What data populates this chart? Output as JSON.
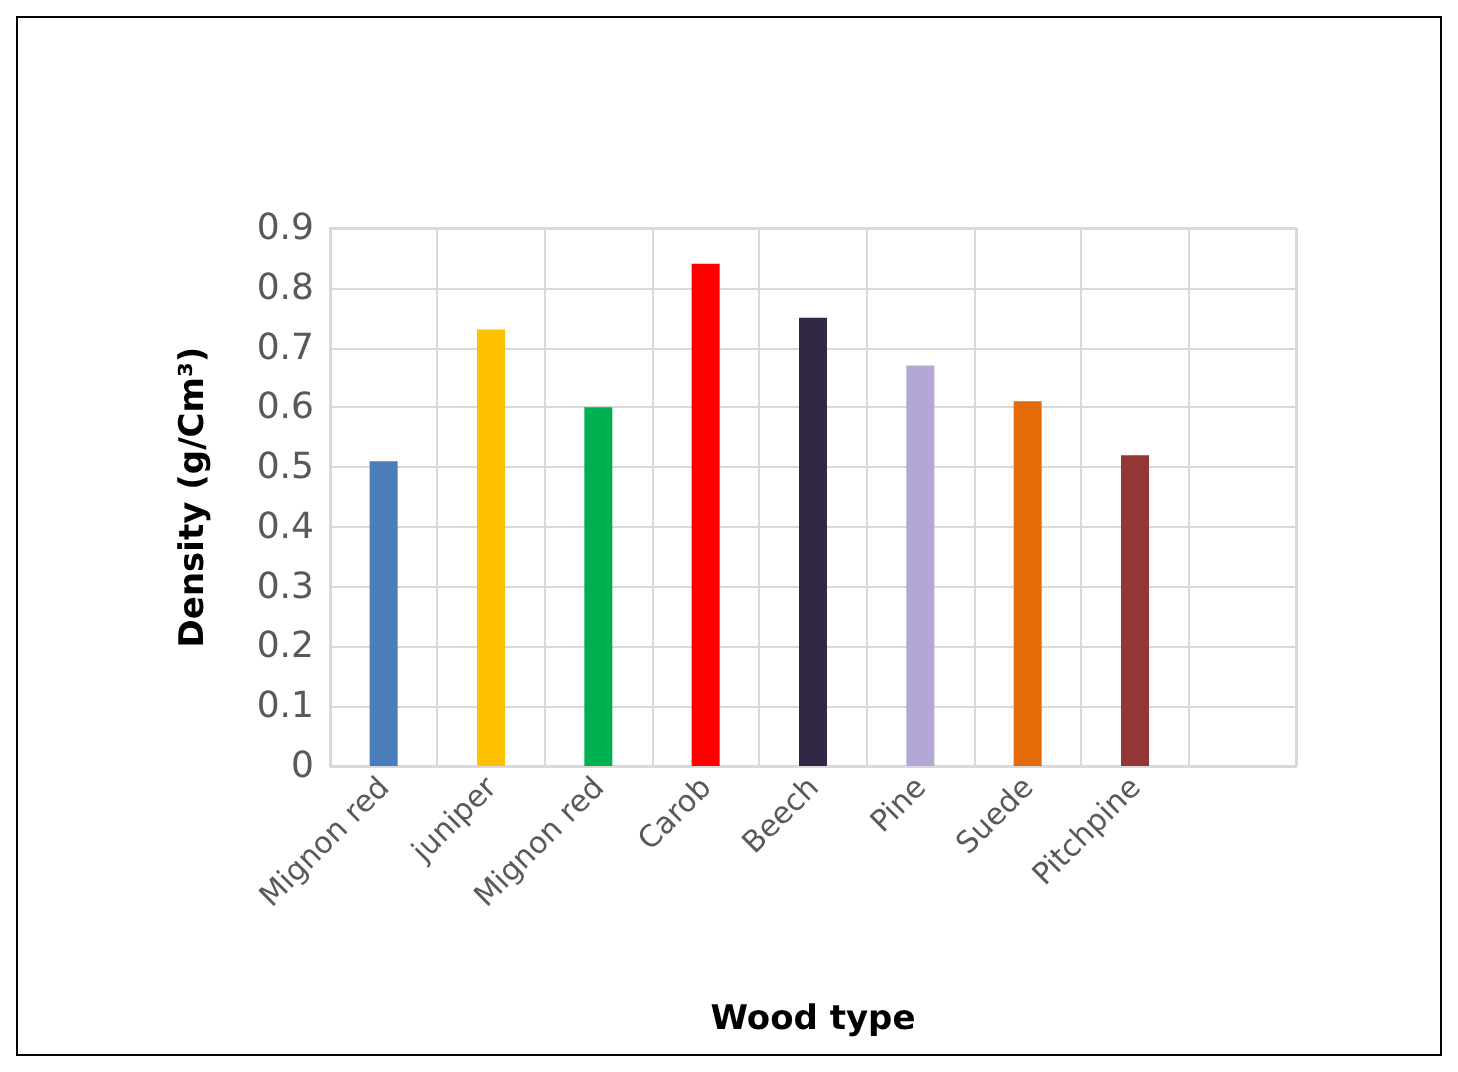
{
  "chart_data": {
    "type": "bar",
    "xlabel": "Wood type",
    "ylabel": "Density (g/Cm³)",
    "categories": [
      "Mignon red",
      "juniper",
      "Mignon red",
      "Carob",
      "Beech",
      "Pine",
      "Suede",
      "Pitchpine",
      null
    ],
    "values": [
      0.51,
      0.73,
      0.6,
      0.84,
      0.75,
      0.67,
      0.61,
      0.52,
      null
    ],
    "colors": [
      "#4a7ebb",
      "#ffc000",
      "#00b050",
      "#ff0000",
      "#302845",
      "#b4a7d6",
      "#e36c09",
      "#943634",
      null
    ],
    "ylim": [
      0,
      0.9
    ],
    "yticks": [
      0,
      0.1,
      0.2,
      0.3,
      0.4,
      0.5,
      0.6,
      0.7,
      0.8,
      0.9
    ],
    "grid": true
  }
}
